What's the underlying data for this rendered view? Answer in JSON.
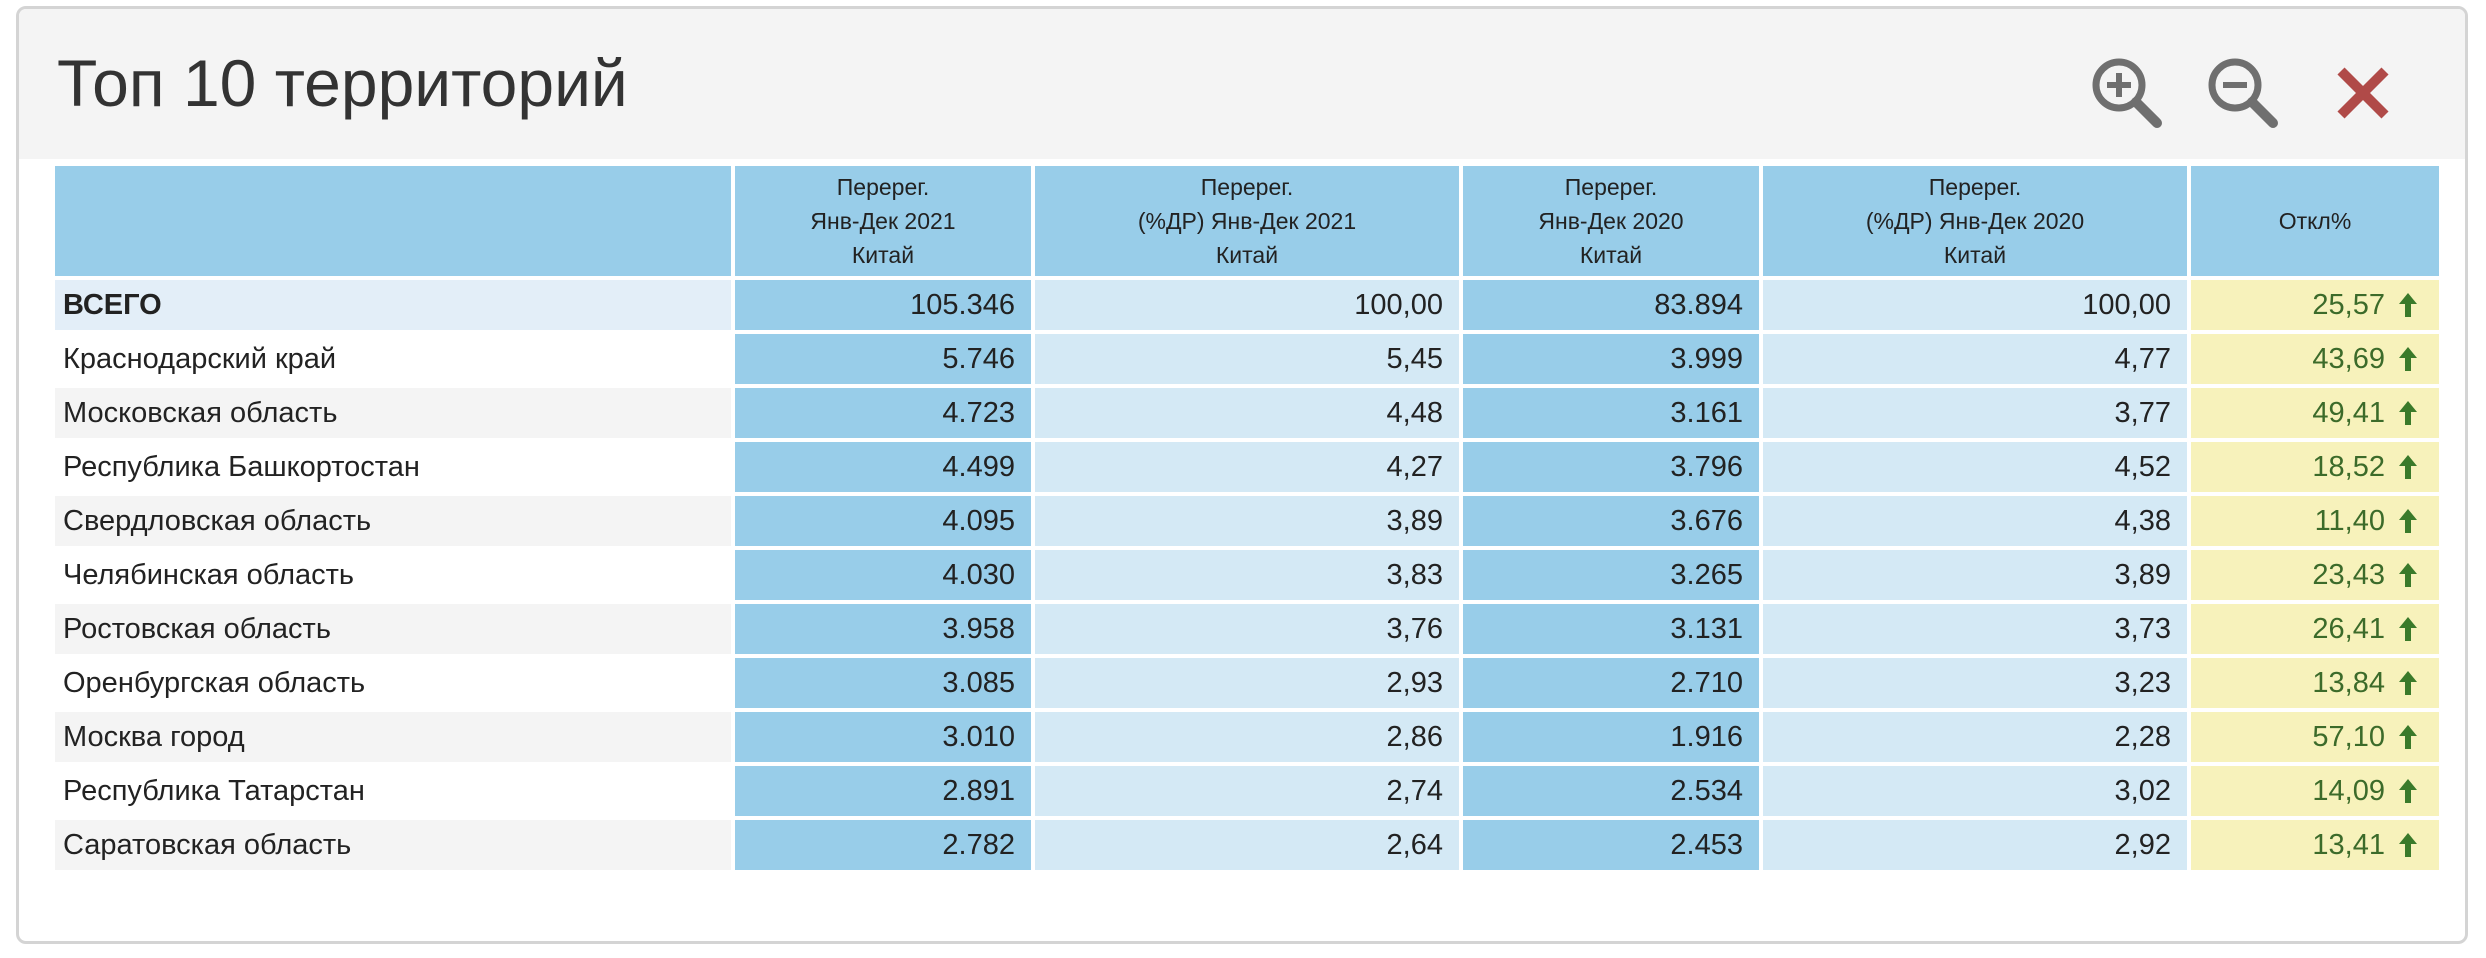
{
  "window": {
    "title": "Топ 10 территорий",
    "tools": [
      {
        "name": "zoom-in",
        "icon": "zoom-in-icon"
      },
      {
        "name": "zoom-out",
        "icon": "zoom-out-icon"
      },
      {
        "name": "close",
        "icon": "close-icon"
      }
    ]
  },
  "colors": {
    "header_blue": "#98cde9",
    "light_blue": "#d4e9f5",
    "deviation_bg": "#f7f2bb",
    "deviation_text": "#3c6b2a",
    "close_red": "#b04a48",
    "zoom_gray": "#6f6f6f"
  },
  "table": {
    "columns": [
      {
        "line1": "",
        "line2": "",
        "line3": ""
      },
      {
        "line1": "Перерег.",
        "line2": "Янв-Дек 2021",
        "line3": "Китай"
      },
      {
        "line1": "Перерег.",
        "line2": "(%ДР) Янв-Дек 2021",
        "line3": "Китай"
      },
      {
        "line1": "Перерег.",
        "line2": "Янв-Дек 2020",
        "line3": "Китай"
      },
      {
        "line1": "Перерег.",
        "line2": "(%ДР) Янв-Дек 2020",
        "line3": "Китай"
      },
      {
        "line1": "",
        "line2": "Откл%",
        "line3": ""
      }
    ],
    "rows": [
      {
        "name": "ВСЕГО",
        "v2021": "105.346",
        "p2021": "100,00",
        "v2020": "83.894",
        "p2020": "100,00",
        "dev": "25,57",
        "trend": "up"
      },
      {
        "name": "Краснодарский край",
        "v2021": "5.746",
        "p2021": "5,45",
        "v2020": "3.999",
        "p2020": "4,77",
        "dev": "43,69",
        "trend": "up"
      },
      {
        "name": "Московская область",
        "v2021": "4.723",
        "p2021": "4,48",
        "v2020": "3.161",
        "p2020": "3,77",
        "dev": "49,41",
        "trend": "up"
      },
      {
        "name": "Республика Башкортостан",
        "v2021": "4.499",
        "p2021": "4,27",
        "v2020": "3.796",
        "p2020": "4,52",
        "dev": "18,52",
        "trend": "up"
      },
      {
        "name": "Свердловская область",
        "v2021": "4.095",
        "p2021": "3,89",
        "v2020": "3.676",
        "p2020": "4,38",
        "dev": "11,40",
        "trend": "up"
      },
      {
        "name": "Челябинская область",
        "v2021": "4.030",
        "p2021": "3,83",
        "v2020": "3.265",
        "p2020": "3,89",
        "dev": "23,43",
        "trend": "up"
      },
      {
        "name": "Ростовская область",
        "v2021": "3.958",
        "p2021": "3,76",
        "v2020": "3.131",
        "p2020": "3,73",
        "dev": "26,41",
        "trend": "up"
      },
      {
        "name": "Оренбургская область",
        "v2021": "3.085",
        "p2021": "2,93",
        "v2020": "2.710",
        "p2020": "3,23",
        "dev": "13,84",
        "trend": "up"
      },
      {
        "name": "Москва город",
        "v2021": "3.010",
        "p2021": "2,86",
        "v2020": "1.916",
        "p2020": "2,28",
        "dev": "57,10",
        "trend": "up"
      },
      {
        "name": "Республика Татарстан",
        "v2021": "2.891",
        "p2021": "2,74",
        "v2020": "2.534",
        "p2020": "3,02",
        "dev": "14,09",
        "trend": "up"
      },
      {
        "name": "Саратовская область",
        "v2021": "2.782",
        "p2021": "2,64",
        "v2020": "2.453",
        "p2020": "2,92",
        "dev": "13,41",
        "trend": "up"
      }
    ]
  }
}
